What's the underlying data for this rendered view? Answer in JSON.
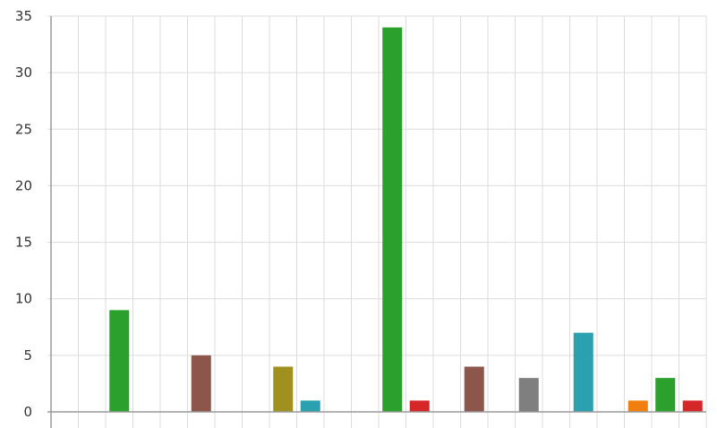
{
  "chart_data": {
    "type": "bar",
    "ylim": [
      0,
      35
    ],
    "y_ticks": [
      "0",
      "5",
      "10",
      "15",
      "20",
      "25",
      "30",
      "35"
    ],
    "y_tick_values": [
      0,
      5,
      10,
      15,
      20,
      25,
      30,
      35
    ],
    "slot_count": 24,
    "grid": true,
    "bars": [
      {
        "slot": 2,
        "value": 9,
        "color": "#2ca02c"
      },
      {
        "slot": 5,
        "value": 5,
        "color": "#8c564b"
      },
      {
        "slot": 8,
        "value": 4,
        "color": "#a09020"
      },
      {
        "slot": 9,
        "value": 1,
        "color": "#2aa0b0"
      },
      {
        "slot": 12,
        "value": 34,
        "color": "#2ca02c"
      },
      {
        "slot": 13,
        "value": 1,
        "color": "#d62728"
      },
      {
        "slot": 15,
        "value": 4,
        "color": "#8c564b"
      },
      {
        "slot": 17,
        "value": 3,
        "color": "#7f7f7f"
      },
      {
        "slot": 19,
        "value": 7,
        "color": "#2aa0b0"
      },
      {
        "slot": 21,
        "value": 1,
        "color": "#f07f10"
      },
      {
        "slot": 22,
        "value": 3,
        "color": "#2ca02c"
      },
      {
        "slot": 23,
        "value": 1,
        "color": "#d62728"
      }
    ]
  }
}
